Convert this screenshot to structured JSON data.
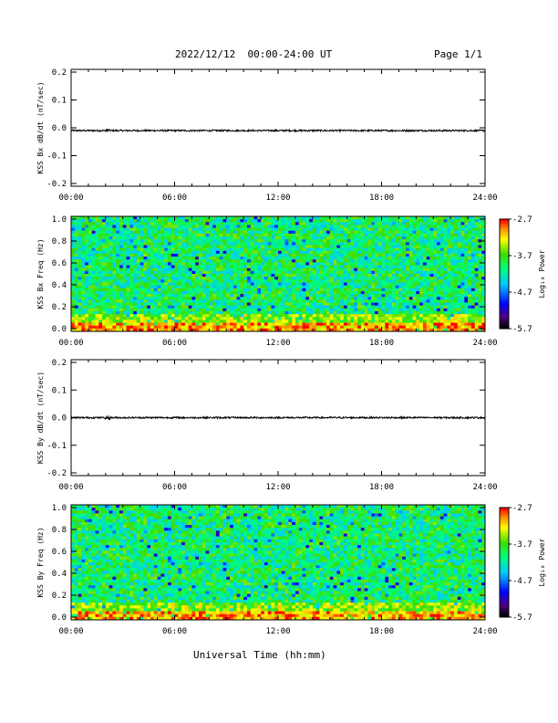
{
  "header": {
    "title": "2022/12/12  00:00-24:00 UT",
    "page": "Page 1/1"
  },
  "x_axis_label": "Universal Time (hh:mm)",
  "chart_data": [
    {
      "type": "line",
      "ylabel": "KSS Bx dB/dt (nT/sec)",
      "ylim": [
        -0.2,
        0.2
      ],
      "y_ticks": [
        "0.2",
        "0.1",
        "0.0",
        "-0.1",
        "-0.2"
      ],
      "x_ticks": [
        "00:00",
        "06:00",
        "12:00",
        "18:00",
        "24:00"
      ],
      "xlim_hours": [
        0,
        24
      ],
      "baseline": -0.01,
      "noise_amplitude": 0.003,
      "burst_hour": 2.1
    },
    {
      "type": "heatmap",
      "ylabel": "KSS Bx Freq (Hz)",
      "ylim": [
        0.0,
        1.0
      ],
      "y_ticks": [
        "1.0",
        "0.8",
        "0.6",
        "0.4",
        "0.2",
        "0.0"
      ],
      "x_ticks": [
        "00:00",
        "06:00",
        "12:00",
        "18:00",
        "24:00"
      ],
      "xlim_hours": [
        0,
        24
      ],
      "colorbar_label": "Log₁₀ Power",
      "colorbar_ticks": [
        "-2.7",
        "-3.7",
        "-4.7",
        "-5.7"
      ],
      "power_range": [
        -5.7,
        -2.7
      ],
      "typical_power": -4.0,
      "low_freq_power": -3.0
    },
    {
      "type": "line",
      "ylabel": "KSS By dB/dt (nT/sec)",
      "ylim": [
        -0.2,
        0.2
      ],
      "y_ticks": [
        "0.2",
        "0.1",
        "0.0",
        "-0.1",
        "-0.2"
      ],
      "x_ticks": [
        "00:00",
        "06:00",
        "12:00",
        "18:00",
        "24:00"
      ],
      "xlim_hours": [
        0,
        24
      ],
      "baseline": 0.0,
      "noise_amplitude": 0.003,
      "burst_hour": 2.1
    },
    {
      "type": "heatmap",
      "ylabel": "KSS By Freq (Hz)",
      "ylim": [
        0.0,
        1.0
      ],
      "y_ticks": [
        "1.0",
        "0.8",
        "0.6",
        "0.4",
        "0.2",
        "0.0"
      ],
      "x_ticks": [
        "00:00",
        "06:00",
        "12:00",
        "18:00",
        "24:00"
      ],
      "xlim_hours": [
        0,
        24
      ],
      "colorbar_label": "Log₁₀ Power",
      "colorbar_ticks": [
        "-2.7",
        "-3.7",
        "-4.7",
        "-5.7"
      ],
      "power_range": [
        -5.7,
        -2.7
      ],
      "typical_power": -4.0,
      "low_freq_power": -3.0
    }
  ]
}
